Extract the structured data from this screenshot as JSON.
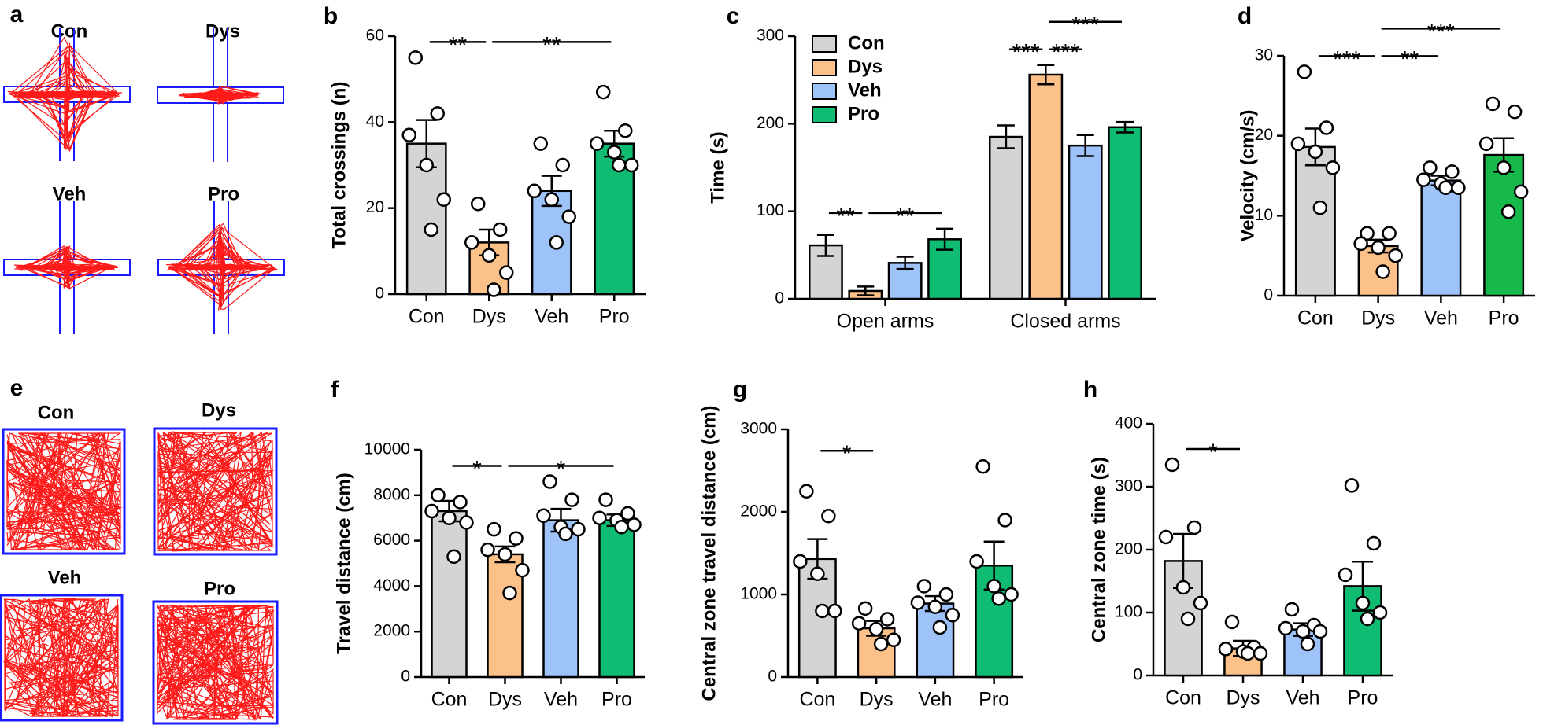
{
  "chart_data": [
    {
      "type": "bar",
      "letter": "b",
      "ylabel": "Total crossings (n)",
      "categories": [
        "Con",
        "Dys",
        "Veh",
        "Pro"
      ],
      "values": [
        35,
        12,
        24,
        35
      ],
      "errors": [
        5.5,
        3,
        3.5,
        3
      ],
      "points": [
        [
          55,
          42,
          37,
          30,
          22,
          15
        ],
        [
          21,
          15,
          12,
          9,
          5,
          1
        ],
        [
          35,
          30,
          24,
          22,
          18,
          12
        ],
        [
          47,
          38,
          35,
          33,
          30,
          30
        ]
      ],
      "colors": [
        "#d4d4d4",
        "#fbc189",
        "#9dc3f8",
        "#10bb72"
      ],
      "ylim": [
        0,
        60
      ],
      "yticks": [
        0,
        20,
        40,
        60
      ],
      "annotations": [
        {
          "label": "**",
          "from": 0,
          "to": 1
        },
        {
          "label": "**",
          "from": 1,
          "to": 3
        }
      ]
    },
    {
      "type": "grouped_bar",
      "letter": "c",
      "ylabel": "Time (s)",
      "categories": [
        "Open arms",
        "Closed arms"
      ],
      "series": [
        {
          "name": "Con",
          "color": "#d4d4d4",
          "values": [
            61,
            185
          ],
          "errors": [
            12,
            13
          ]
        },
        {
          "name": "Dys",
          "color": "#fbc189",
          "values": [
            9,
            256
          ],
          "errors": [
            5,
            11
          ]
        },
        {
          "name": "Veh",
          "color": "#9dc3f8",
          "values": [
            41,
            175
          ],
          "errors": [
            7,
            12
          ]
        },
        {
          "name": "Pro",
          "color": "#10bb72",
          "values": [
            68,
            196
          ],
          "errors": [
            12,
            6
          ]
        }
      ],
      "legend": "top-left",
      "ylim": [
        0,
        300
      ],
      "yticks": [
        0,
        100,
        200,
        300
      ],
      "annotations": [
        {
          "label": "**",
          "group": 0,
          "from": 0,
          "to": 1
        },
        {
          "label": "**",
          "group": 0,
          "from": 1,
          "to": 3
        },
        {
          "label": "***",
          "group": 1,
          "from": 0,
          "to": 1
        },
        {
          "label": "***",
          "group": 1,
          "from": 1,
          "to": 2
        },
        {
          "label": "***",
          "group": 1,
          "from": 1,
          "to": 3
        }
      ]
    },
    {
      "type": "bar",
      "letter": "d",
      "ylabel": "Velocity (cm/s)",
      "categories": [
        "Con",
        "Dys",
        "Veh",
        "Pro"
      ],
      "values": [
        18.6,
        6.2,
        14.4,
        17.6
      ],
      "errors": [
        2.3,
        0.8,
        0.6,
        2.1
      ],
      "points": [
        [
          28,
          21,
          19,
          18,
          16,
          11
        ],
        [
          7.8,
          7.8,
          6.5,
          6,
          5,
          3
        ],
        [
          16,
          15.5,
          14.5,
          14,
          13.5,
          13.5
        ],
        [
          24,
          23,
          19,
          16,
          13,
          10.5
        ]
      ],
      "colors": [
        "#d4d4d4",
        "#fbc189",
        "#9dc3f8",
        "#17b94b"
      ],
      "ylim": [
        0,
        30
      ],
      "yticks": [
        0,
        10,
        20,
        30
      ],
      "annotations": [
        {
          "label": "***",
          "from": 0,
          "to": 1
        },
        {
          "label": "**",
          "from": 1,
          "to": 2
        },
        {
          "label": "***",
          "from": 1,
          "to": 3
        }
      ]
    },
    {
      "type": "bar",
      "letter": "f",
      "ylabel": "Travel distance (cm)",
      "categories": [
        "Con",
        "Dys",
        "Veh",
        "Pro"
      ],
      "values": [
        7300,
        5400,
        6900,
        6900
      ],
      "errors": [
        450,
        350,
        500,
        250
      ],
      "points": [
        [
          8000,
          7700,
          7300,
          7000,
          6800,
          5300
        ],
        [
          6500,
          6100,
          5600,
          5400,
          4700,
          3700
        ],
        [
          8600,
          7800,
          7100,
          6600,
          6500,
          6300
        ],
        [
          7800,
          7200,
          7000,
          6900,
          6700,
          6600
        ]
      ],
      "colors": [
        "#d4d4d4",
        "#fbc189",
        "#9dc3f8",
        "#10bb72"
      ],
      "ylim": [
        0,
        10000
      ],
      "yticks": [
        0,
        2000,
        4000,
        6000,
        8000,
        10000
      ],
      "annotations": [
        {
          "label": "*",
          "from": 0,
          "to": 1
        },
        {
          "label": "*",
          "from": 1,
          "to": 3
        }
      ]
    },
    {
      "type": "bar",
      "letter": "g",
      "ylabel": "Central zone travel distance (cm)",
      "categories": [
        "Con",
        "Dys",
        "Veh",
        "Pro"
      ],
      "values": [
        1430,
        590,
        890,
        1350
      ],
      "errors": [
        240,
        90,
        90,
        290
      ],
      "points": [
        [
          2250,
          1950,
          1400,
          1250,
          800,
          800
        ],
        [
          830,
          700,
          650,
          580,
          450,
          400
        ],
        [
          1100,
          1000,
          900,
          850,
          750,
          600
        ],
        [
          2550,
          1900,
          1400,
          1100,
          1000,
          950
        ]
      ],
      "colors": [
        "#d4d4d4",
        "#fbc189",
        "#9dc3f8",
        "#10bb72"
      ],
      "ylim": [
        0,
        3000
      ],
      "yticks": [
        0,
        1000,
        2000,
        3000
      ],
      "annotations": [
        {
          "label": "*",
          "from": 0,
          "to": 1
        }
      ]
    },
    {
      "type": "bar",
      "letter": "h",
      "ylabel": "Central zone time (s)",
      "categories": [
        "Con",
        "Dys",
        "Veh",
        "Pro"
      ],
      "values": [
        182,
        43,
        73,
        142
      ],
      "errors": [
        43,
        12,
        10,
        39
      ],
      "points": [
        [
          335,
          235,
          220,
          140,
          115,
          90
        ],
        [
          85,
          45,
          42,
          38,
          35,
          35
        ],
        [
          105,
          80,
          75,
          70,
          70,
          50
        ],
        [
          302,
          210,
          160,
          115,
          100,
          90
        ]
      ],
      "colors": [
        "#d4d4d4",
        "#fbc189",
        "#9dc3f8",
        "#10bb72"
      ],
      "ylim": [
        0,
        400
      ],
      "yticks": [
        0,
        100,
        200,
        300,
        400
      ],
      "annotations": [
        {
          "label": "*",
          "from": 0,
          "to": 1
        }
      ]
    }
  ],
  "panels": [
    {
      "letter": "a",
      "labels": [
        "Con",
        "Dys",
        "Veh",
        "Pro"
      ]
    },
    {
      "letter": "e",
      "labels": [
        "Con",
        "Dys",
        "Veh",
        "Pro"
      ]
    }
  ]
}
